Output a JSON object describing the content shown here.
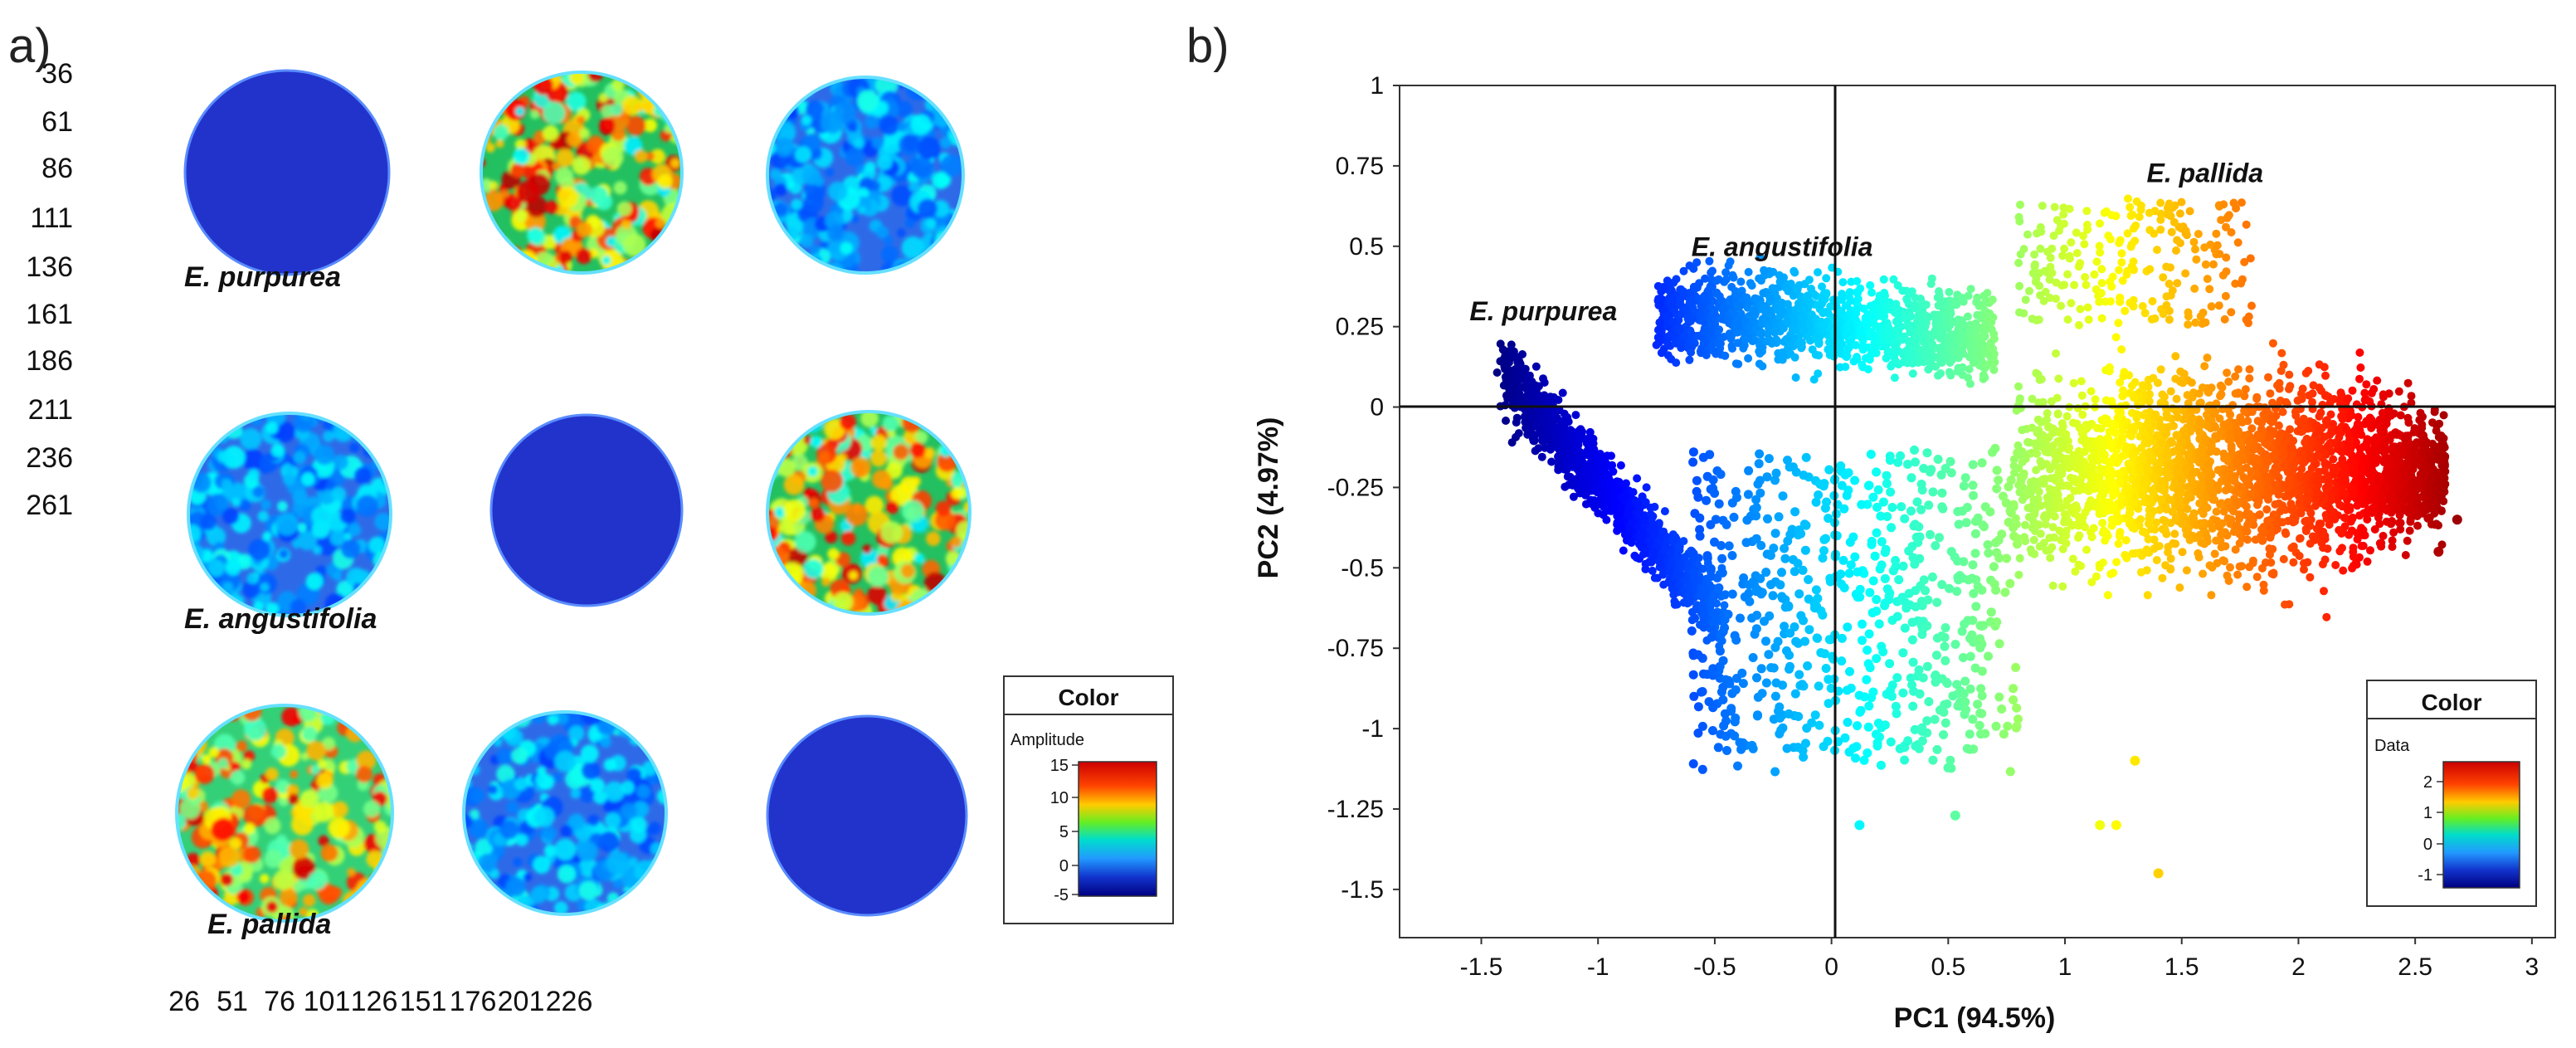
{
  "panel_a": {
    "label": "a)",
    "y_ticks": [
      "36",
      "61",
      "86",
      "111",
      "136",
      "161",
      "186",
      "211",
      "236",
      "261"
    ],
    "x_ticks": [
      "26",
      "51",
      "76",
      "101",
      "126",
      "151",
      "176",
      "201",
      "226"
    ],
    "species_labels": [
      "E. purpurea",
      "E. angustifolia",
      "E. pallida"
    ],
    "legend": {
      "title": "Color",
      "subtitle": "Amplitude",
      "ticks": [
        "15",
        "10",
        "5",
        "0",
        "-5"
      ]
    },
    "maps": [
      {
        "name": "purpurea-on-purpurea",
        "pattern": "flat",
        "color": "#2233cc"
      },
      {
        "name": "purpurea-on-angustifolia",
        "pattern": "hot"
      },
      {
        "name": "purpurea-on-pallida",
        "pattern": "cool"
      },
      {
        "name": "angustifolia-on-purpurea",
        "pattern": "cool"
      },
      {
        "name": "angustifolia-on-angustifolia",
        "pattern": "flat",
        "color": "#2233cc"
      },
      {
        "name": "angustifolia-on-pallida",
        "pattern": "hot"
      },
      {
        "name": "pallida-on-purpurea",
        "pattern": "warm"
      },
      {
        "name": "pallida-on-angustifolia",
        "pattern": "cool"
      },
      {
        "name": "pallida-on-pallida",
        "pattern": "flat",
        "color": "#2233cc"
      }
    ]
  },
  "chart_data": {
    "type": "scatter",
    "panel_label": "b)",
    "xlabel": "PC1 (94.5%)",
    "ylabel": "PC2 (4.97%)",
    "xlim": [
      -1.85,
      3.1
    ],
    "ylim": [
      -1.65,
      1.0
    ],
    "x_ticks": [
      "-1.5",
      "-1",
      "-0.5",
      "0",
      "0.5",
      "1",
      "1.5",
      "2",
      "2.5",
      "3"
    ],
    "y_ticks": [
      "1",
      "0.75",
      "0.5",
      "0.25",
      "0",
      "-0.25",
      "-0.5",
      "-0.75",
      "-1",
      "-1.25",
      "-1.5"
    ],
    "annotations": [
      {
        "text": "E. purpurea",
        "x": -1.55,
        "y": 0.27
      },
      {
        "text": "E. angustifolia",
        "x": -0.6,
        "y": 0.47
      },
      {
        "text": "E. pallida",
        "x": 1.35,
        "y": 0.7
      }
    ],
    "clusters": [
      {
        "name": "E. purpurea",
        "x_range": [
          -1.45,
          -0.5
        ],
        "y_range": [
          -0.9,
          0.2
        ]
      },
      {
        "name": "E. angustifolia",
        "x_range": [
          -0.75,
          0.75
        ],
        "y_range": [
          -1.3,
          0.5
        ]
      },
      {
        "name": "E. pallida",
        "x_range": [
          0.75,
          2.75
        ],
        "y_range": [
          -1.45,
          0.7
        ]
      }
    ],
    "legend": {
      "title": "Color",
      "subtitle": "Data",
      "ticks": [
        "2",
        "1",
        "0",
        "-1"
      ]
    }
  }
}
